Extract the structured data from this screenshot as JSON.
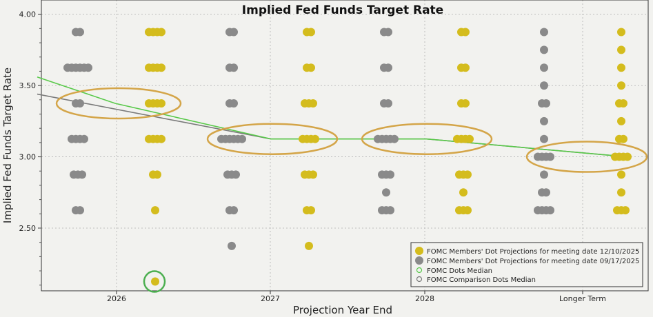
{
  "chart_data": {
    "type": "scatter",
    "title": "Implied Fed Funds Target Rate",
    "xlabel": "Projection Year End",
    "ylabel": "Implied Fed Funds Target Rate",
    "ylim": [
      2.06,
      4.1
    ],
    "y_ticks": [
      "2.50",
      "3.00",
      "3.50",
      "4.00"
    ],
    "x_ticks": [
      "2026",
      "2027",
      "2028",
      "Longer Term"
    ],
    "grid": true,
    "legend_position": "bottom-right",
    "colors": {
      "current": "#d4bc1d",
      "previous": "#8a8a8a",
      "median_current": "#59c94a",
      "median_previous": "#7a7a7a",
      "highlight_ellipse": "#d4a548",
      "highlight_circle": "#4caf50",
      "background": "#f2f2ef"
    },
    "series": [
      {
        "name": "FOMC Members' Dot Projections for meeting date 12/10/2025",
        "points": [
          {
            "x": "2026",
            "y": 3.875,
            "count": 4
          },
          {
            "x": "2026",
            "y": 3.625,
            "count": 4
          },
          {
            "x": "2026",
            "y": 3.375,
            "count": 4
          },
          {
            "x": "2026",
            "y": 3.125,
            "count": 4
          },
          {
            "x": "2026",
            "y": 2.875,
            "count": 2
          },
          {
            "x": "2026",
            "y": 2.625,
            "count": 1
          },
          {
            "x": "2026",
            "y": 2.125,
            "count": 1
          },
          {
            "x": "2027",
            "y": 3.875,
            "count": 2
          },
          {
            "x": "2027",
            "y": 3.625,
            "count": 2
          },
          {
            "x": "2027",
            "y": 3.375,
            "count": 3
          },
          {
            "x": "2027",
            "y": 3.125,
            "count": 4
          },
          {
            "x": "2027",
            "y": 2.875,
            "count": 3
          },
          {
            "x": "2027",
            "y": 2.625,
            "count": 2
          },
          {
            "x": "2027",
            "y": 2.375,
            "count": 1
          },
          {
            "x": "2028",
            "y": 3.875,
            "count": 2
          },
          {
            "x": "2028",
            "y": 3.625,
            "count": 2
          },
          {
            "x": "2028",
            "y": 3.375,
            "count": 2
          },
          {
            "x": "2028",
            "y": 3.125,
            "count": 4
          },
          {
            "x": "2028",
            "y": 2.875,
            "count": 3
          },
          {
            "x": "2028",
            "y": 2.75,
            "count": 1
          },
          {
            "x": "2028",
            "y": 2.625,
            "count": 3
          },
          {
            "x": "Longer Term",
            "y": 3.875,
            "count": 1
          },
          {
            "x": "Longer Term",
            "y": 3.75,
            "count": 1
          },
          {
            "x": "Longer Term",
            "y": 3.625,
            "count": 1
          },
          {
            "x": "Longer Term",
            "y": 3.5,
            "count": 1
          },
          {
            "x": "Longer Term",
            "y": 3.375,
            "count": 2
          },
          {
            "x": "Longer Term",
            "y": 3.25,
            "count": 1
          },
          {
            "x": "Longer Term",
            "y": 3.125,
            "count": 2
          },
          {
            "x": "Longer Term",
            "y": 3.0,
            "count": 4
          },
          {
            "x": "Longer Term",
            "y": 2.875,
            "count": 1
          },
          {
            "x": "Longer Term",
            "y": 2.75,
            "count": 1
          },
          {
            "x": "Longer Term",
            "y": 2.625,
            "count": 3
          }
        ]
      },
      {
        "name": "FOMC Members' Dot Projections for meeting date 09/17/2025",
        "points": [
          {
            "x": "2026",
            "y": 3.875,
            "count": 2
          },
          {
            "x": "2026",
            "y": 3.625,
            "count": 6
          },
          {
            "x": "2026",
            "y": 3.375,
            "count": 2
          },
          {
            "x": "2026",
            "y": 3.125,
            "count": 4
          },
          {
            "x": "2026",
            "y": 2.875,
            "count": 3
          },
          {
            "x": "2026",
            "y": 2.625,
            "count": 2
          },
          {
            "x": "2027",
            "y": 3.875,
            "count": 2
          },
          {
            "x": "2027",
            "y": 3.625,
            "count": 2
          },
          {
            "x": "2027",
            "y": 3.375,
            "count": 2
          },
          {
            "x": "2027",
            "y": 3.125,
            "count": 6
          },
          {
            "x": "2027",
            "y": 2.875,
            "count": 3
          },
          {
            "x": "2027",
            "y": 2.625,
            "count": 2
          },
          {
            "x": "2027",
            "y": 2.375,
            "count": 1
          },
          {
            "x": "2028",
            "y": 3.875,
            "count": 2
          },
          {
            "x": "2028",
            "y": 3.625,
            "count": 2
          },
          {
            "x": "2028",
            "y": 3.375,
            "count": 2
          },
          {
            "x": "2028",
            "y": 3.125,
            "count": 5
          },
          {
            "x": "2028",
            "y": 2.875,
            "count": 3
          },
          {
            "x": "2028",
            "y": 2.75,
            "count": 1
          },
          {
            "x": "2028",
            "y": 2.625,
            "count": 3
          },
          {
            "x": "Longer Term",
            "y": 3.875,
            "count": 1
          },
          {
            "x": "Longer Term",
            "y": 3.75,
            "count": 1
          },
          {
            "x": "Longer Term",
            "y": 3.625,
            "count": 1
          },
          {
            "x": "Longer Term",
            "y": 3.5,
            "count": 1
          },
          {
            "x": "Longer Term",
            "y": 3.375,
            "count": 2
          },
          {
            "x": "Longer Term",
            "y": 3.25,
            "count": 1
          },
          {
            "x": "Longer Term",
            "y": 3.125,
            "count": 1
          },
          {
            "x": "Longer Term",
            "y": 3.0,
            "count": 4
          },
          {
            "x": "Longer Term",
            "y": 2.875,
            "count": 1
          },
          {
            "x": "Longer Term",
            "y": 2.75,
            "count": 2
          },
          {
            "x": "Longer Term",
            "y": 2.625,
            "count": 4
          }
        ]
      },
      {
        "name": "FOMC Dots Median",
        "line": [
          [
            2025.5,
            3.56
          ],
          [
            2026,
            3.375
          ],
          [
            2027,
            3.125
          ],
          [
            2028,
            3.125
          ],
          [
            2028.9,
            3.0
          ]
        ]
      },
      {
        "name": "FOMC Comparison Dots Median",
        "line": [
          [
            2025.5,
            3.44
          ],
          [
            2027,
            3.125
          ],
          [
            2028,
            3.125
          ],
          [
            2028.9,
            3.0
          ]
        ]
      }
    ],
    "highlights": [
      {
        "type": "ellipse",
        "x": "2026",
        "y": 3.375
      },
      {
        "type": "ellipse",
        "x": "2027",
        "y": 3.125
      },
      {
        "type": "ellipse",
        "x": "2028",
        "y": 3.125
      },
      {
        "type": "ellipse",
        "x": "Longer Term",
        "y": 3.0
      },
      {
        "type": "circle",
        "x": "2026",
        "y": 2.125
      }
    ]
  }
}
